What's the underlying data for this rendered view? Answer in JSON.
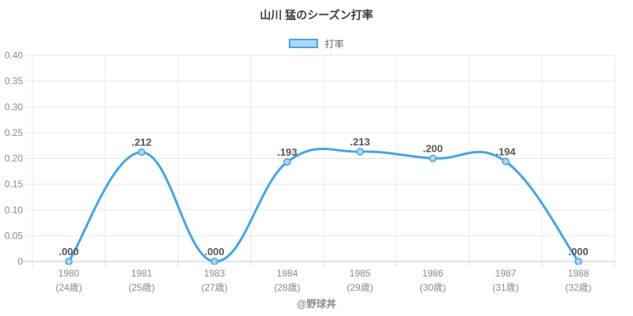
{
  "chart_data": {
    "type": "line",
    "title": "山川 猛のシーズン打率",
    "legend": {
      "label": "打率",
      "position": "top"
    },
    "categories": [
      "1980",
      "1981",
      "1983",
      "1984",
      "1985",
      "1986",
      "1987",
      "1988"
    ],
    "category_sublabels": [
      "(24歳)",
      "(25歳)",
      "(27歳)",
      "(28歳)",
      "(29歳)",
      "(30歳)",
      "(31歳)",
      "(32歳)"
    ],
    "series": [
      {
        "name": "打率",
        "values": [
          0.0,
          0.212,
          0.0,
          0.193,
          0.213,
          0.2,
          0.194,
          0.0
        ]
      }
    ],
    "point_labels": [
      ".000",
      ".212",
      ".000",
      ".193",
      ".213",
      ".200",
      ".194",
      ".000"
    ],
    "xlabel": "",
    "ylabel": "",
    "ylim": [
      0,
      0.4
    ],
    "y_ticks": [
      "0.40",
      "0.35",
      "0.30",
      "0.25",
      "0.20",
      "0.15",
      "0.10",
      "0.05",
      "0"
    ],
    "grid": "on",
    "line_tension": 0.4,
    "footer": "@野球丼",
    "colors": {
      "line": "#45a5e5",
      "point_fill": "#aed7f3",
      "grid": "#e7e7e7",
      "axis_line": "#c9c9c9",
      "tick_mark": "#d9d9d9",
      "tick_label": "#8a8a8a",
      "title": "#3b3b3b",
      "data_label": "#565656",
      "legend_text": "#666666",
      "footer": "#8b8b8b"
    }
  }
}
